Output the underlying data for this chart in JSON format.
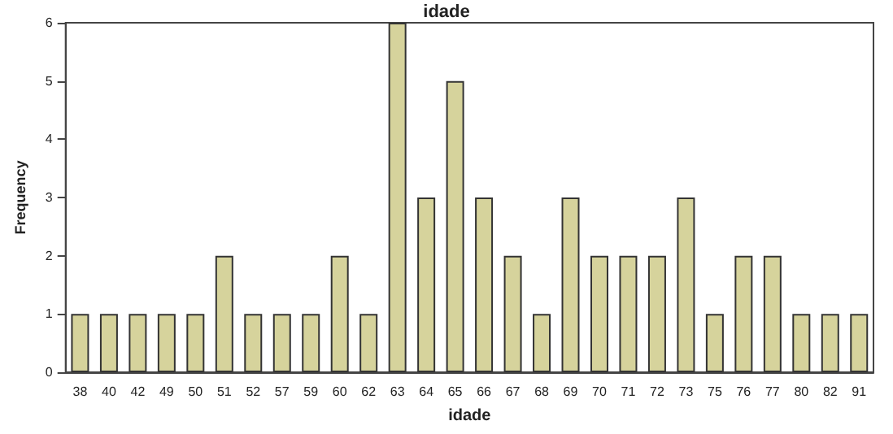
{
  "chart_data": {
    "type": "bar",
    "title": "idade",
    "xlabel": "idade",
    "ylabel": "Frequency",
    "categories": [
      "38",
      "40",
      "42",
      "49",
      "50",
      "51",
      "52",
      "57",
      "59",
      "60",
      "62",
      "63",
      "64",
      "65",
      "66",
      "67",
      "68",
      "69",
      "70",
      "71",
      "72",
      "73",
      "75",
      "76",
      "77",
      "80",
      "82",
      "91"
    ],
    "values": [
      1,
      1,
      1,
      1,
      1,
      2,
      1,
      1,
      1,
      2,
      1,
      6,
      3,
      5,
      3,
      2,
      1,
      3,
      2,
      2,
      2,
      3,
      1,
      2,
      2,
      1,
      1,
      1
    ],
    "color": "#d6d39c",
    "ylim": [
      0,
      6
    ],
    "yticks": [
      0,
      1,
      2,
      3,
      4,
      5,
      6
    ],
    "grid": false
  }
}
